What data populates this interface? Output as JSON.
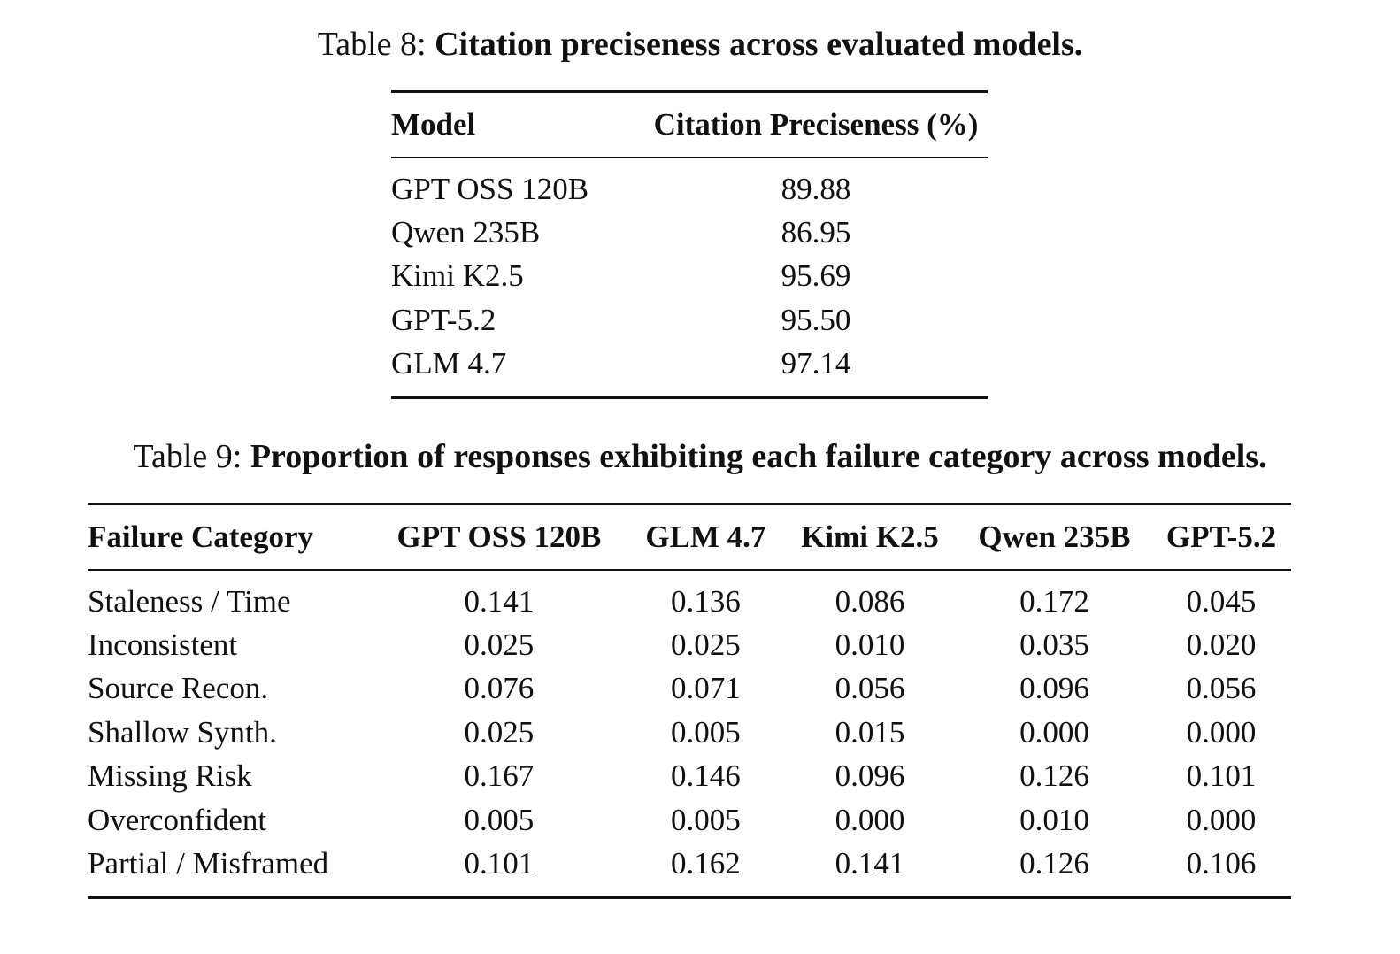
{
  "table8": {
    "label": "Table 8:",
    "title": "Citation preciseness across evaluated models.",
    "headers": [
      "Model",
      "Citation Preciseness (%)"
    ],
    "rows": [
      {
        "model": "GPT OSS 120B",
        "value": "89.88"
      },
      {
        "model": "Qwen 235B",
        "value": "86.95"
      },
      {
        "model": "Kimi K2.5",
        "value": "95.69"
      },
      {
        "model": "GPT-5.2",
        "value": "95.50"
      },
      {
        "model": "GLM 4.7",
        "value": "97.14"
      }
    ]
  },
  "table9": {
    "label": "Table 9:",
    "title": "Proportion of responses exhibiting each failure category across models.",
    "headers": [
      "Failure Category",
      "GPT OSS 120B",
      "GLM 4.7",
      "Kimi K2.5",
      "Qwen 235B",
      "GPT-5.2"
    ],
    "rows": [
      {
        "category": "Staleness / Time",
        "values": [
          "0.141",
          "0.136",
          "0.086",
          "0.172",
          "0.045"
        ]
      },
      {
        "category": "Inconsistent",
        "values": [
          "0.025",
          "0.025",
          "0.010",
          "0.035",
          "0.020"
        ]
      },
      {
        "category": "Source Recon.",
        "values": [
          "0.076",
          "0.071",
          "0.056",
          "0.096",
          "0.056"
        ]
      },
      {
        "category": "Shallow Synth.",
        "values": [
          "0.025",
          "0.005",
          "0.015",
          "0.000",
          "0.000"
        ]
      },
      {
        "category": "Missing Risk",
        "values": [
          "0.167",
          "0.146",
          "0.096",
          "0.126",
          "0.101"
        ]
      },
      {
        "category": "Overconfident",
        "values": [
          "0.005",
          "0.005",
          "0.000",
          "0.010",
          "0.000"
        ]
      },
      {
        "category": "Partial / Misframed",
        "values": [
          "0.101",
          "0.162",
          "0.141",
          "0.126",
          "0.106"
        ]
      }
    ]
  }
}
